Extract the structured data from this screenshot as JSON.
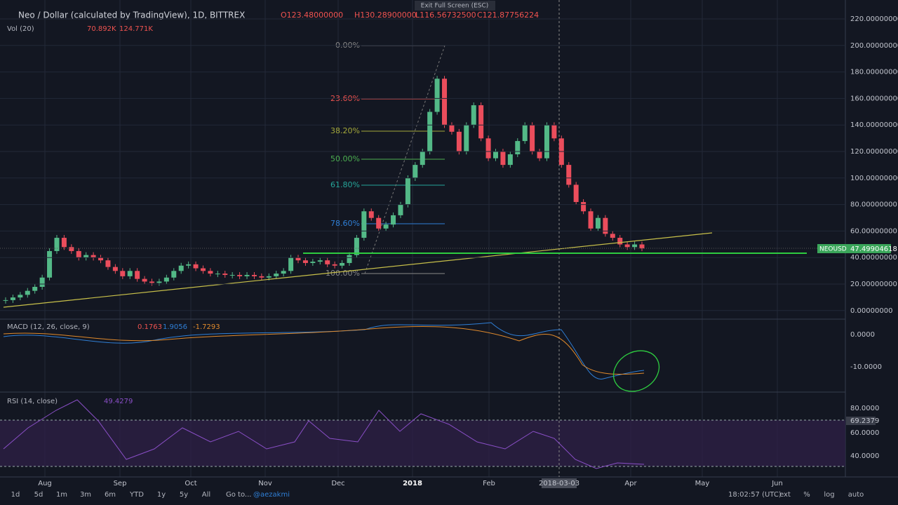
{
  "header": {
    "title": "Neo / Dollar (calculated by TradingView), 1D, BITTREX",
    "open": "O123.48000000",
    "high": "H130.28900000",
    "low": "L116.56732500",
    "close": "C121.87756224",
    "exit": "Exit Full Screen (ESC)"
  },
  "volume": {
    "label": "Vol (20)",
    "v1": "70.892K",
    "v2": "124.771K"
  },
  "macd": {
    "label": "MACD (12, 26, close, 9)",
    "v1": "0.1763",
    "v2": "1.9056",
    "v3": "-1.7293",
    "ticks": [
      "0.0000",
      "-10.0000"
    ]
  },
  "rsi": {
    "label": "RSI (14, close)",
    "value": "49.4279",
    "ticks": [
      "80.0000",
      "60.0000",
      "40.0000"
    ],
    "tag": "69.2379"
  },
  "price_ticks": [
    "220.00000000",
    "200.00000000",
    "180.00000000",
    "160.00000000",
    "140.00000000",
    "120.00000000",
    "100.00000000",
    "80.00000000",
    "60.00000000",
    "40.00000000",
    "20.00000000",
    "0.00000000"
  ],
  "price_tag": {
    "symbol": "NEOUSD",
    "value": "47.49904618"
  },
  "fib": [
    "0.00%",
    "23.60%",
    "38.20%",
    "50.00%",
    "61.80%",
    "78.60%",
    "100.00%"
  ],
  "time_axis": [
    "Aug",
    "Sep",
    "Oct",
    "Nov",
    "Dec",
    "2018",
    "Feb",
    "2018-03-03",
    "Apr",
    "May",
    "Jun"
  ],
  "toolbar": {
    "ranges": [
      "1d",
      "5d",
      "1m",
      "3m",
      "6m",
      "YTD",
      "1y",
      "5y",
      "All"
    ],
    "goto": "Go to...",
    "user": "@aezakmi",
    "time": "18:02:57 (UTC)",
    "right": [
      "ext",
      "%",
      "log",
      "auto"
    ]
  },
  "closes": [
    8,
    10,
    12,
    15,
    18,
    25,
    45,
    55,
    48,
    45,
    40,
    42,
    40,
    38,
    33,
    30,
    26,
    30,
    24,
    22,
    21,
    22,
    25,
    30,
    34,
    35,
    32,
    30,
    28,
    28,
    27,
    27,
    26,
    27,
    26,
    25,
    26,
    28,
    30,
    40,
    38,
    36,
    37,
    38,
    35,
    34,
    36,
    42,
    55,
    75,
    70,
    62,
    65,
    72,
    80,
    100,
    110,
    120,
    150,
    175,
    140,
    135,
    120,
    140,
    155,
    130,
    115,
    120,
    110,
    118,
    128,
    140,
    120,
    115,
    140,
    130,
    110,
    95,
    82,
    75,
    62,
    70,
    58,
    55,
    50,
    48,
    50,
    47
  ]
}
